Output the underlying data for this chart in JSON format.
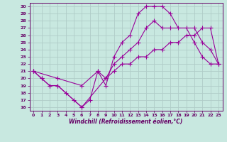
{
  "xlabel": "Windchill (Refroidissement éolien,°C)",
  "background_color": "#c8e8e0",
  "grid_color": "#aacccc",
  "line_color": "#990099",
  "xlim": [
    -0.5,
    23.5
  ],
  "ylim": [
    15.5,
    30.5
  ],
  "yticks": [
    16,
    17,
    18,
    19,
    20,
    21,
    22,
    23,
    24,
    25,
    26,
    27,
    28,
    29,
    30
  ],
  "xticks": [
    0,
    1,
    2,
    3,
    4,
    5,
    6,
    7,
    8,
    9,
    10,
    11,
    12,
    13,
    14,
    15,
    16,
    17,
    18,
    19,
    20,
    21,
    22,
    23
  ],
  "line1_x": [
    0,
    1,
    2,
    3,
    4,
    5,
    6,
    7,
    8,
    9,
    10,
    11,
    12,
    13,
    14,
    15,
    16,
    17,
    18,
    19,
    20,
    21,
    22,
    23
  ],
  "line1_y": [
    21,
    20,
    19,
    19,
    18,
    17,
    16,
    17,
    21,
    19,
    23,
    25,
    26,
    29,
    30,
    30,
    30,
    29,
    27,
    27,
    25,
    23,
    22,
    22
  ],
  "line2_x": [
    0,
    1,
    2,
    3,
    6,
    9,
    10,
    11,
    12,
    13,
    14,
    15,
    16,
    17,
    20,
    21,
    22,
    23
  ],
  "line2_y": [
    21,
    20,
    19,
    19,
    16,
    20,
    22,
    23,
    24,
    25,
    27,
    28,
    27,
    27,
    27,
    25,
    24,
    22
  ],
  "line3_x": [
    0,
    3,
    6,
    8,
    9,
    10,
    11,
    12,
    13,
    14,
    15,
    16,
    17,
    18,
    19,
    20,
    21,
    22,
    23
  ],
  "line3_y": [
    21,
    20,
    19,
    21,
    20,
    21,
    22,
    22,
    23,
    23,
    24,
    24,
    25,
    25,
    26,
    26,
    27,
    27,
    22
  ]
}
